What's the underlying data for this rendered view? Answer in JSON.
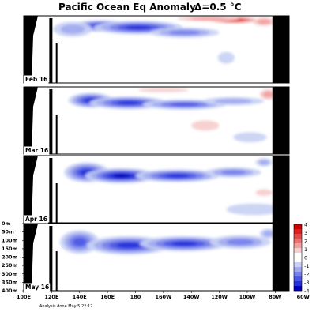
{
  "title": "Pacific Ocean Eq Anomaly",
  "contour_interval": "Δ=0.5 °C",
  "footnote": "Analysis done May 5 22:12",
  "colors": {
    "land": "#000000",
    "background": "#ffffff",
    "warm": [
      "#f6cccc",
      "#f29f9f",
      "#ec7272",
      "#e44848",
      "#dc2020",
      "#cc0000"
    ],
    "cold": [
      "#c8d0f4",
      "#a0aaf0",
      "#7580ea",
      "#4c58e4",
      "#2430d8",
      "#0000b8"
    ]
  },
  "chart_data": {
    "type": "heatmap",
    "title": "Pacific Ocean Eq Anomaly",
    "interval": "Δ=0.5 °C",
    "units": "°C",
    "xlim": [
      100,
      290
    ],
    "x_ticks": [
      {
        "value": 100,
        "label": "100E"
      },
      {
        "value": 120,
        "label": "120E"
      },
      {
        "value": 140,
        "label": "140E"
      },
      {
        "value": 160,
        "label": "160E"
      },
      {
        "value": 180,
        "label": "180"
      },
      {
        "value": 200,
        "label": "160W"
      },
      {
        "value": 220,
        "label": "140W"
      },
      {
        "value": 240,
        "label": "120W"
      },
      {
        "value": 260,
        "label": "100W"
      },
      {
        "value": 280,
        "label": "80W"
      },
      {
        "value": 300,
        "label": "60W"
      }
    ],
    "ylim": [
      0,
      400
    ],
    "y_ticks": [
      {
        "value": 0,
        "label": "0m"
      },
      {
        "value": 50,
        "label": "50m"
      },
      {
        "value": 100,
        "label": "100m"
      },
      {
        "value": 150,
        "label": "150m"
      },
      {
        "value": 200,
        "label": "200m"
      },
      {
        "value": 250,
        "label": "250m"
      },
      {
        "value": 300,
        "label": "300m"
      },
      {
        "value": 350,
        "label": "350m"
      },
      {
        "value": 400,
        "label": "400m"
      }
    ],
    "colorbar": {
      "levels": [
        4,
        3,
        2,
        1,
        0,
        -1,
        -2,
        -3,
        -4
      ],
      "labels": [
        "4",
        "3",
        "2",
        "1",
        "0",
        "-1",
        "-2",
        "-3",
        "-4"
      ]
    },
    "panels": [
      {
        "label": "Feb 16",
        "anomalies": [
          {
            "lon": 155,
            "depth": 60,
            "rx": 20,
            "ry": 35,
            "value": -2.5
          },
          {
            "lon": 182,
            "depth": 70,
            "rx": 32,
            "ry": 40,
            "value": -2.8
          },
          {
            "lon": 215,
            "depth": 100,
            "rx": 25,
            "ry": 30,
            "value": -1.6
          },
          {
            "lon": 135,
            "depth": 80,
            "rx": 14,
            "ry": 45,
            "value": -1.2
          },
          {
            "lon": 250,
            "depth": 25,
            "rx": 18,
            "ry": 20,
            "value": 2.6
          },
          {
            "lon": 232,
            "depth": 18,
            "rx": 22,
            "ry": 15,
            "value": 1.4
          },
          {
            "lon": 272,
            "depth": 35,
            "rx": 8,
            "ry": 25,
            "value": 1.2
          },
          {
            "lon": 245,
            "depth": 250,
            "rx": 6,
            "ry": 35,
            "value": -0.8
          }
        ]
      },
      {
        "label": "Mar 16",
        "anomalies": [
          {
            "lon": 148,
            "depth": 80,
            "rx": 16,
            "ry": 45,
            "value": -2.6
          },
          {
            "lon": 175,
            "depth": 95,
            "rx": 28,
            "ry": 38,
            "value": -2.8
          },
          {
            "lon": 215,
            "depth": 105,
            "rx": 30,
            "ry": 30,
            "value": -2.0
          },
          {
            "lon": 250,
            "depth": 85,
            "rx": 22,
            "ry": 25,
            "value": -1.2
          },
          {
            "lon": 275,
            "depth": 45,
            "rx": 6,
            "ry": 30,
            "value": 1.3
          },
          {
            "lon": 200,
            "depth": 20,
            "rx": 18,
            "ry": 12,
            "value": 0.8
          },
          {
            "lon": 230,
            "depth": 230,
            "rx": 10,
            "ry": 30,
            "value": 0.8
          },
          {
            "lon": 262,
            "depth": 300,
            "rx": 12,
            "ry": 30,
            "value": -0.8
          }
        ]
      },
      {
        "label": "Apr 16",
        "anomalies": [
          {
            "lon": 145,
            "depth": 100,
            "rx": 16,
            "ry": 60,
            "value": -2.6
          },
          {
            "lon": 170,
            "depth": 120,
            "rx": 26,
            "ry": 45,
            "value": -3.0
          },
          {
            "lon": 210,
            "depth": 120,
            "rx": 30,
            "ry": 38,
            "value": -2.6
          },
          {
            "lon": 250,
            "depth": 100,
            "rx": 20,
            "ry": 30,
            "value": -1.6
          },
          {
            "lon": 272,
            "depth": 40,
            "rx": 6,
            "ry": 25,
            "value": -1.0
          },
          {
            "lon": 265,
            "depth": 320,
            "rx": 20,
            "ry": 35,
            "value": -0.8
          },
          {
            "lon": 272,
            "depth": 220,
            "rx": 6,
            "ry": 20,
            "value": 0.7
          }
        ]
      },
      {
        "label": "May 16",
        "anomalies": [
          {
            "lon": 140,
            "depth": 110,
            "rx": 14,
            "ry": 70,
            "value": -2.0
          },
          {
            "lon": 175,
            "depth": 130,
            "rx": 30,
            "ry": 55,
            "value": -2.8
          },
          {
            "lon": 215,
            "depth": 120,
            "rx": 32,
            "ry": 45,
            "value": -2.6
          },
          {
            "lon": 255,
            "depth": 110,
            "rx": 22,
            "ry": 40,
            "value": -1.8
          },
          {
            "lon": 275,
            "depth": 60,
            "rx": 6,
            "ry": 30,
            "value": -1.2
          }
        ]
      }
    ]
  }
}
